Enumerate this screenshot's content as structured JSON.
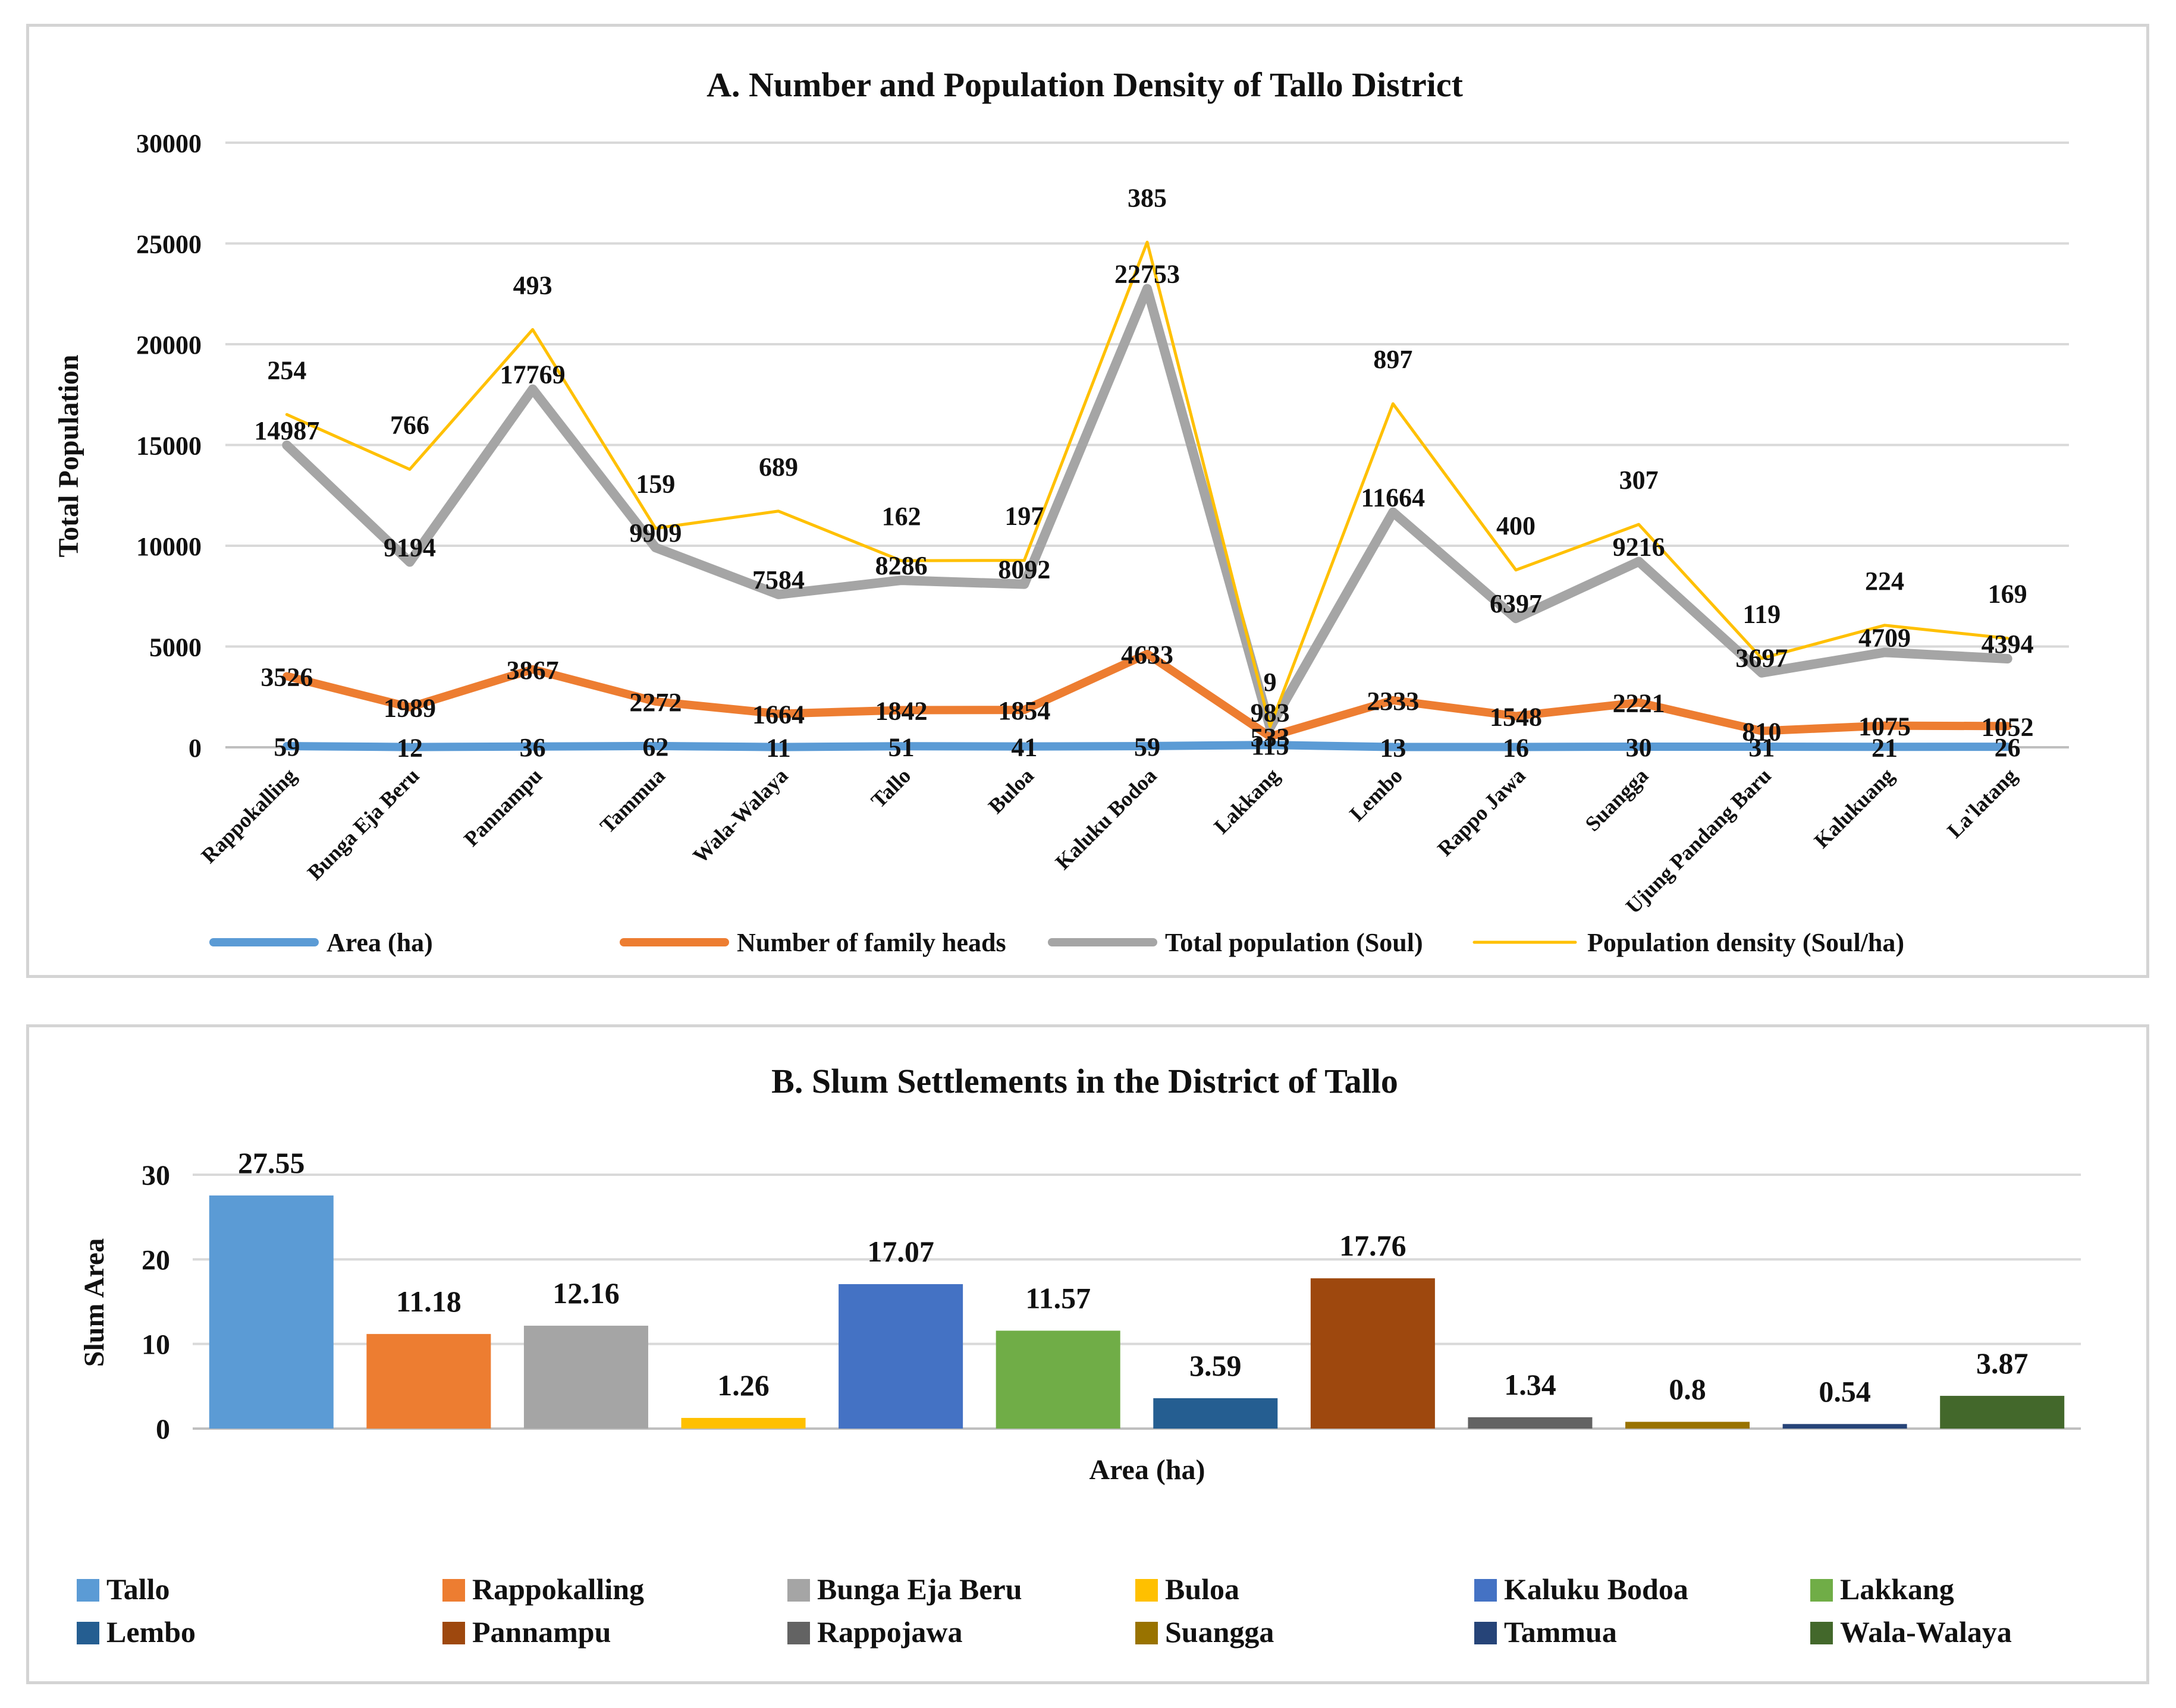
{
  "chart_data": [
    {
      "type": "line",
      "title": "A. Number and Population Density of Tallo District",
      "xlabel": "",
      "ylabel": "Total Population",
      "ylim": [
        0,
        30000
      ],
      "yticks": [
        0,
        5000,
        10000,
        15000,
        20000,
        25000,
        30000
      ],
      "grid": true,
      "legend_position": "bottom",
      "categories": [
        "Rappokalling",
        "Bunga Eja Beru",
        "Pannampu",
        "Tammua",
        "Wala-Walaya",
        "Tallo",
        "Buloa",
        "Kaluku Bodoa",
        "Lakkang",
        "Lembo",
        "Rappo Jawa",
        "Suangga",
        "Ujung Pandang Baru",
        "Kalukuang",
        "La'latang"
      ],
      "series": [
        {
          "name": "Area (ha)",
          "color": "#5B9BD5",
          "values": [
            59,
            12,
            36,
            62,
            11,
            51,
            41,
            59,
            115,
            13,
            16,
            30,
            31,
            21,
            26
          ]
        },
        {
          "name": "Number of family heads",
          "color": "#ED7D31",
          "values": [
            3526,
            1989,
            3867,
            2272,
            1664,
            1842,
            1854,
            4633,
            533,
            2333,
            1548,
            2221,
            810,
            1075,
            1052
          ]
        },
        {
          "name": "Total population (Soul)",
          "color": "#A5A5A5",
          "values": [
            14987,
            9194,
            17769,
            9909,
            7584,
            8286,
            8092,
            22753,
            983,
            11664,
            6397,
            9216,
            3697,
            4709,
            4394
          ]
        },
        {
          "name": "Population density (Soul/ha)",
          "color": "#FFC000",
          "values": [
            254,
            766,
            493,
            159,
            689,
            162,
            197,
            385,
            9,
            897,
            400,
            307,
            119,
            224,
            169
          ]
        }
      ]
    },
    {
      "type": "bar",
      "title": "B. Slum Settlements in the District of Tallo",
      "xlabel": "Area (ha)",
      "ylabel": "Slum Area",
      "ylim": [
        0,
        30
      ],
      "yticks": [
        0,
        10,
        20,
        30
      ],
      "grid": true,
      "legend_position": "bottom",
      "series": [
        {
          "name": "Tallo",
          "color": "#5B9BD5",
          "value": 27.55,
          "label": "27.55"
        },
        {
          "name": "Rappokalling",
          "color": "#ED7D31",
          "value": 11.18,
          "label": "11.18"
        },
        {
          "name": "Bunga Eja Beru",
          "color": "#A5A5A5",
          "value": 12.16,
          "label": "12.16"
        },
        {
          "name": "Buloa",
          "color": "#FFC000",
          "value": 1.26,
          "label": "1.26"
        },
        {
          "name": "Kaluku Bodoa",
          "color": "#4472C4",
          "value": 17.07,
          "label": "17.07"
        },
        {
          "name": "Lakkang",
          "color": "#70AD47",
          "value": 11.57,
          "label": "11.57"
        },
        {
          "name": "Lembo",
          "color": "#255E91",
          "value": 3.59,
          "label": "3.59"
        },
        {
          "name": "Pannampu",
          "color": "#9E480E",
          "value": 17.76,
          "label": "17.76"
        },
        {
          "name": "Rappojawa",
          "color": "#636363",
          "value": 1.34,
          "label": "1.34"
        },
        {
          "name": "Suangga",
          "color": "#997300",
          "value": 0.8,
          "label": "0.8"
        },
        {
          "name": "Tammua",
          "color": "#264478",
          "value": 0.54,
          "label": "0.54"
        },
        {
          "name": "Wala-Walaya",
          "color": "#43682B",
          "value": 3.87,
          "label": "3.87"
        }
      ]
    }
  ]
}
